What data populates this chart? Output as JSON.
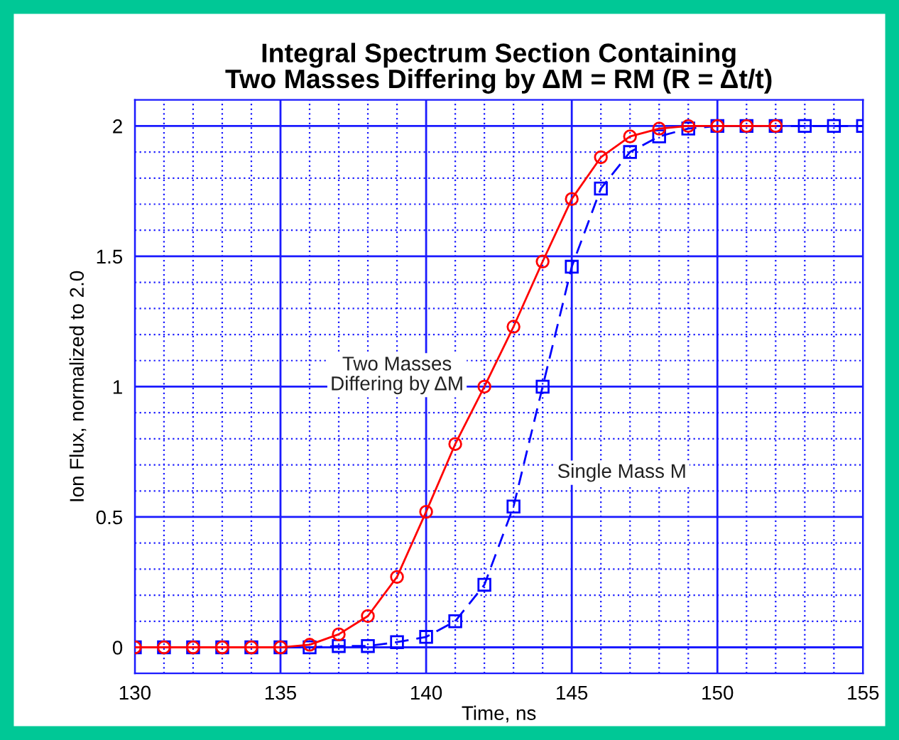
{
  "chart_data": {
    "type": "line",
    "title": "Integral Spectrum Section Containing\nTwo Masses Differing by ΔM = RM (R = Δt/t)",
    "xlabel": "Time, ns",
    "ylabel": "Ion Flux, normalized to 2.0",
    "xlim": [
      130,
      155
    ],
    "xticks": [
      130,
      {
        "value": 131,
        "label": null
      },
      {
        "value": 132,
        "label": null
      },
      {
        "value": 133,
        "label": null
      },
      {
        "value": 134,
        "label": null
      },
      135,
      {
        "value": 136,
        "label": null
      },
      {
        "value": 137,
        "label": null
      },
      {
        "value": 138,
        "label": null
      },
      {
        "value": 139,
        "label": null
      },
      140,
      {
        "value": 141,
        "label": null
      },
      {
        "value": 142,
        "label": null
      },
      {
        "value": 143,
        "label": null
      },
      {
        "value": 144,
        "label": null
      },
      145,
      {
        "value": 146,
        "label": null
      },
      {
        "value": 147,
        "label": null
      },
      {
        "value": 148,
        "label": null
      },
      {
        "value": 149,
        "label": null
      },
      150,
      {
        "value": 151,
        "label": null
      },
      {
        "value": 152,
        "label": null
      },
      {
        "value": 153,
        "label": null
      },
      {
        "value": 154,
        "label": null
      },
      155
    ],
    "ylim": [
      -0.1,
      2.1
    ],
    "yticks": [
      {
        "value": 0,
        "label": "0"
      },
      {
        "value": 0.1,
        "label": null
      },
      {
        "value": 0.2,
        "label": null
      },
      {
        "value": 0.3,
        "label": null
      },
      {
        "value": 0.4,
        "label": null
      },
      0.5,
      {
        "value": 0.6,
        "label": null
      },
      {
        "value": 0.7,
        "label": null
      },
      {
        "value": 0.8,
        "label": null
      },
      {
        "value": 0.9,
        "label": null
      },
      1,
      {
        "value": 1.1,
        "label": null
      },
      {
        "value": 1.2,
        "label": null
      },
      {
        "value": 1.3,
        "label": null
      },
      {
        "value": 1.4,
        "label": null
      },
      1.5,
      {
        "value": 1.6,
        "label": null
      },
      {
        "value": 1.7,
        "label": null
      },
      {
        "value": 1.8,
        "label": null
      },
      {
        "value": 1.9,
        "label": null
      },
      2
    ],
    "grid": true,
    "series": [
      {
        "name": "Two Masses\nDiffering by ΔM",
        "color": "#ff0000",
        "marker": "circle",
        "line_style": "solid",
        "x": [
          130,
          131,
          132,
          133,
          134,
          135,
          136,
          137,
          138,
          139,
          140,
          141,
          142,
          143,
          144,
          145,
          146,
          147,
          148,
          149,
          150,
          151,
          152
        ],
        "values": [
          0,
          0,
          0,
          0,
          0,
          0,
          0.01,
          0.05,
          0.12,
          0.27,
          0.52,
          0.78,
          1.0,
          1.23,
          1.48,
          1.72,
          1.88,
          1.96,
          1.99,
          2.0,
          2.0,
          2.0,
          2.0
        ]
      },
      {
        "name": "Single Mass M",
        "color": "#0000ff",
        "marker": "square",
        "line_style": "dashed",
        "x": [
          130,
          131,
          132,
          133,
          134,
          135,
          136,
          137,
          138,
          139,
          140,
          141,
          142,
          143,
          144,
          145,
          146,
          147,
          148,
          149,
          150,
          151,
          152,
          153,
          154,
          155
        ],
        "values": [
          0,
          0,
          0,
          0,
          0,
          0,
          0,
          0.005,
          0.005,
          0.02,
          0.04,
          0.1,
          0.24,
          0.54,
          1.0,
          1.46,
          1.76,
          1.9,
          1.96,
          1.99,
          2.0,
          2.0,
          2.0,
          2.0,
          2.0,
          2.0
        ]
      }
    ]
  }
}
